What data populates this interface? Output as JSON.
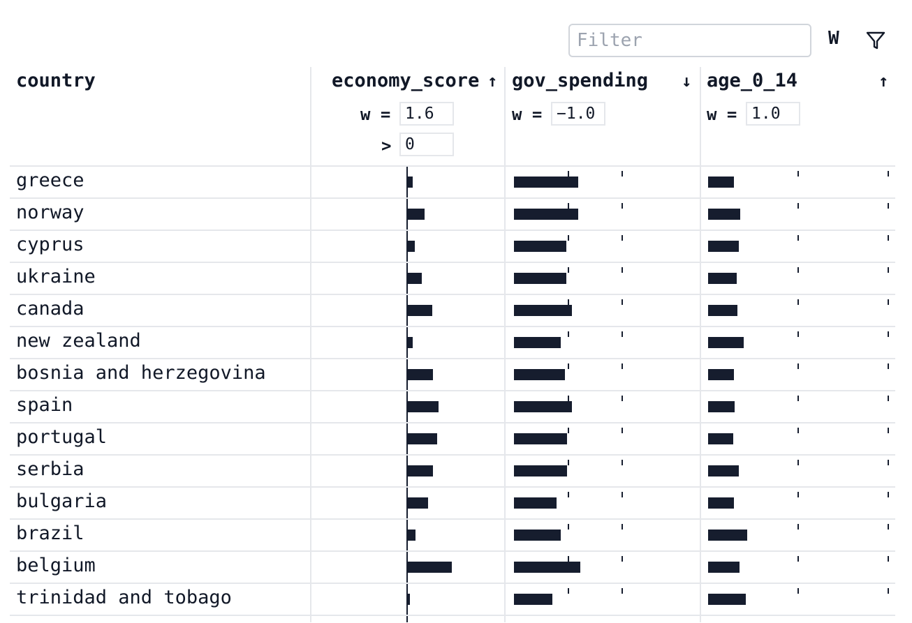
{
  "toolbar": {
    "filter_placeholder": "Filter",
    "weights_button": "W",
    "filter_icon": "filter-icon"
  },
  "columns": [
    {
      "key": "country",
      "title": "country"
    },
    {
      "key": "economy_score",
      "title": "economy_score",
      "sort": "↑",
      "w_label": "w =",
      "w": "1.6",
      "filter_label": ">",
      "filter": "0"
    },
    {
      "key": "gov_spending",
      "title": "gov_spending",
      "sort": "↓",
      "w_label": "w =",
      "w": "−1.0"
    },
    {
      "key": "age_0_14",
      "title": "age_0_14",
      "sort": "↑",
      "w_label": "w =",
      "w": "1.0"
    }
  ],
  "rows": [
    {
      "country": "greece",
      "economy": 0.07,
      "gov": 0.59,
      "age": 0.29
    },
    {
      "country": "norway",
      "economy": 0.24,
      "gov": 0.59,
      "age": 0.36
    },
    {
      "country": "cyprus",
      "economy": 0.1,
      "gov": 0.48,
      "age": 0.34
    },
    {
      "country": "ukraine",
      "economy": 0.2,
      "gov": 0.48,
      "age": 0.32
    },
    {
      "country": "canada",
      "economy": 0.35,
      "gov": 0.53,
      "age": 0.33
    },
    {
      "country": "new zealand",
      "economy": 0.07,
      "gov": 0.43,
      "age": 0.4
    },
    {
      "country": "bosnia and herzegovina",
      "economy": 0.36,
      "gov": 0.47,
      "age": 0.29
    },
    {
      "country": "spain",
      "economy": 0.44,
      "gov": 0.53,
      "age": 0.3
    },
    {
      "country": "portugal",
      "economy": 0.42,
      "gov": 0.49,
      "age": 0.28
    },
    {
      "country": "serbia",
      "economy": 0.36,
      "gov": 0.49,
      "age": 0.34
    },
    {
      "country": "bulgaria",
      "economy": 0.29,
      "gov": 0.39,
      "age": 0.29
    },
    {
      "country": "brazil",
      "economy": 0.11,
      "gov": 0.43,
      "age": 0.44
    },
    {
      "country": "belgium",
      "economy": 0.63,
      "gov": 0.61,
      "age": 0.35
    },
    {
      "country": "trinidad and tobago",
      "economy": 0.03,
      "gov": 0.35,
      "age": 0.42
    }
  ]
}
